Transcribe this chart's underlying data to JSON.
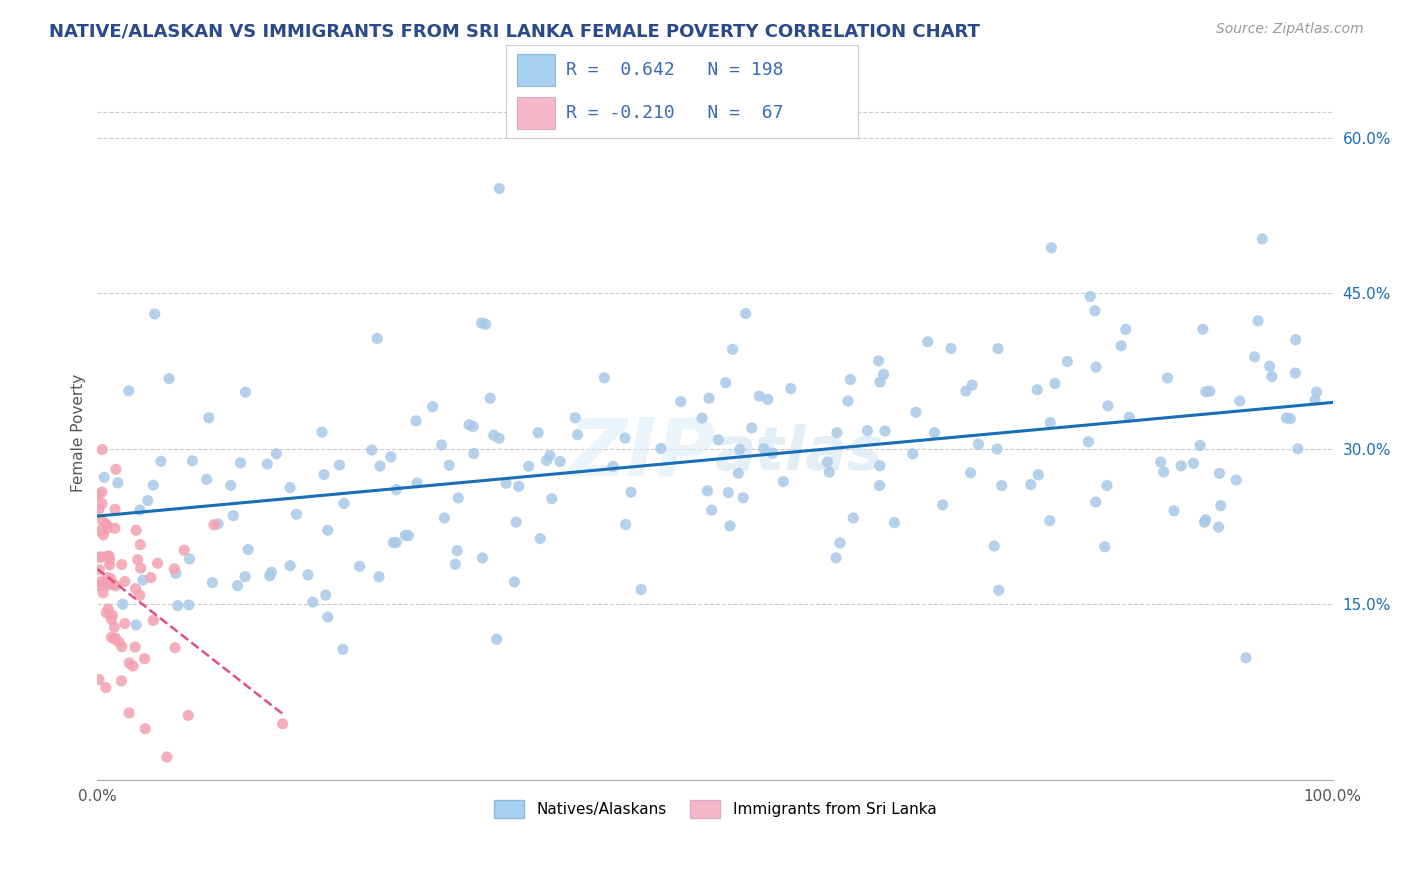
{
  "title": "NATIVE/ALASKAN VS IMMIGRANTS FROM SRI LANKA FEMALE POVERTY CORRELATION CHART",
  "source_text": "Source: ZipAtlas.com",
  "ylabel": "Female Poverty",
  "xlim": [
    0.0,
    1.0
  ],
  "ylim": [
    -0.02,
    0.65
  ],
  "x_tick_labels": [
    "0.0%",
    "100.0%"
  ],
  "y_tick_labels": [
    "15.0%",
    "30.0%",
    "45.0%",
    "60.0%"
  ],
  "y_tick_values": [
    0.15,
    0.3,
    0.45,
    0.6
  ],
  "r_blue": 0.642,
  "n_blue": 198,
  "r_pink": -0.21,
  "n_pink": 67,
  "blue_scatter_color": "#a8c8e8",
  "pink_scatter_color": "#f4a0b0",
  "blue_line_color": "#1a6eb5",
  "pink_line_color": "#e05080",
  "legend_blue_color": "#a8d0f0",
  "legend_pink_color": "#f4b8c8",
  "background_color": "#ffffff",
  "grid_color": "#cccccc",
  "title_color": "#2a4a8a",
  "stats_color": "#3a6ab8",
  "blue_seed": 42,
  "pink_seed": 77
}
